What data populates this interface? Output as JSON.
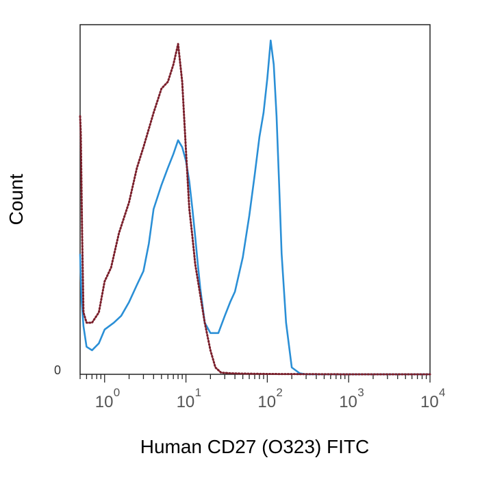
{
  "chart_data": {
    "type": "line",
    "xlabel": "Human CD27 (O323) FITC",
    "ylabel": "Count",
    "x_scale": "log",
    "xlim": [
      0.5,
      10000
    ],
    "ylim": [
      0,
      100
    ],
    "x_ticks": [
      {
        "base": "10",
        "exp": "0",
        "value": 1
      },
      {
        "base": "10",
        "exp": "1",
        "value": 10
      },
      {
        "base": "10",
        "exp": "2",
        "value": 100
      },
      {
        "base": "10",
        "exp": "3",
        "value": 1000
      },
      {
        "base": "10",
        "exp": "4",
        "value": 10000
      }
    ],
    "y_ticks": [
      {
        "label": "0",
        "value": 0
      }
    ],
    "grid": false,
    "series": [
      {
        "style": "solid",
        "color": "#2a8fd6",
        "x": [
          0.5,
          0.52,
          0.55,
          0.6,
          0.7,
          0.85,
          1.0,
          1.3,
          1.6,
          2.0,
          2.5,
          3.0,
          3.5,
          4.0,
          5.0,
          6.0,
          7.0,
          8.0,
          9.0,
          10.0,
          11.0,
          12.0,
          13.0,
          14.0,
          15.0,
          17.0,
          20.0,
          25.0,
          30.0,
          35.0,
          40.0,
          50.0,
          60.0,
          70.0,
          80.0,
          90.0,
          100.0,
          110.0,
          120.0,
          130.0,
          140.0,
          150.0,
          170.0,
          200.0,
          250.0,
          300.0,
          500.0,
          1000.0,
          10000.0
        ],
        "y": [
          35,
          22,
          14,
          8,
          7,
          9,
          13,
          15,
          17,
          21,
          26,
          30,
          38,
          48,
          55,
          60,
          64,
          68,
          66,
          62,
          56,
          48,
          40,
          32,
          25,
          15,
          12,
          12,
          17,
          21,
          24,
          34,
          46,
          58,
          69,
          76,
          86,
          97,
          90,
          75,
          55,
          35,
          15,
          2,
          0.3,
          0,
          0,
          0,
          0
        ]
      },
      {
        "style": "dotted",
        "color": "#7a1f2b",
        "x": [
          0.5,
          0.51,
          0.53,
          0.55,
          0.6,
          0.7,
          0.85,
          1.0,
          1.2,
          1.5,
          2.0,
          2.5,
          3.0,
          4.0,
          5.0,
          6.0,
          7.0,
          8.0,
          9.0,
          10.0,
          11.0,
          12.0,
          13.0,
          15.0,
          17.0,
          20.0,
          23.0,
          27.0,
          35.0,
          50.0,
          100.0,
          1000.0,
          10000.0
        ],
        "y": [
          75,
          70,
          40,
          18,
          15,
          15,
          18,
          27,
          31,
          41,
          50,
          60,
          66,
          76,
          83,
          85,
          90,
          96,
          85,
          65,
          48,
          40,
          32,
          23,
          15,
          7,
          2,
          0.5,
          0.3,
          0.2,
          0.1,
          0,
          0
        ]
      }
    ]
  }
}
